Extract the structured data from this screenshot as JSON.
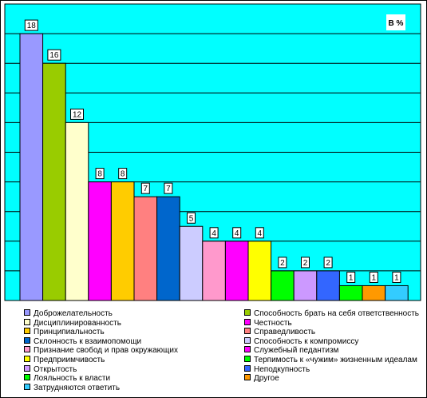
{
  "chart_data": {
    "type": "bar",
    "unit_label": "В %",
    "ylim": [
      0,
      20
    ],
    "grid": true,
    "legend_position": "bottom",
    "background_color": "#00ffff",
    "series": [
      {
        "name": "Доброжелательность",
        "value": 18,
        "color": "#9999ff"
      },
      {
        "name": "Способность брать на себя ответственность",
        "value": 16,
        "color": "#99cc00"
      },
      {
        "name": "Дисциплинированность",
        "value": 12,
        "color": "#ffffcc"
      },
      {
        "name": "Честность",
        "value": 8,
        "color": "#ff00ff"
      },
      {
        "name": "Принципиальность",
        "value": 8,
        "color": "#ffcc00"
      },
      {
        "name": "Справедливость",
        "value": 7,
        "color": "#ff8080"
      },
      {
        "name": "Склонность к взаимопомощи",
        "value": 7,
        "color": "#0066cc"
      },
      {
        "name": "Способность к компромиссу",
        "value": 5,
        "color": "#ccccff"
      },
      {
        "name": "Признание свобод и прав окружающих",
        "value": 4,
        "color": "#ff99cc"
      },
      {
        "name": "Служебный педантизм",
        "value": 4,
        "color": "#ff00ff"
      },
      {
        "name": "Предприимчивость",
        "value": 4,
        "color": "#ffff00"
      },
      {
        "name": "Терпимость к «чужим» жизненным идеалам",
        "value": 2,
        "color": "#00ff00"
      },
      {
        "name": "Открытость",
        "value": 2,
        "color": "#cc99ff"
      },
      {
        "name": "Неподкупность",
        "value": 2,
        "color": "#3366ff"
      },
      {
        "name": "Лояльность к власти",
        "value": 1,
        "color": "#00ff00"
      },
      {
        "name": "Другое",
        "value": 1,
        "color": "#ff9900"
      },
      {
        "name": "Затрудняются ответить",
        "value": 1,
        "color": "#33ccff"
      }
    ]
  }
}
